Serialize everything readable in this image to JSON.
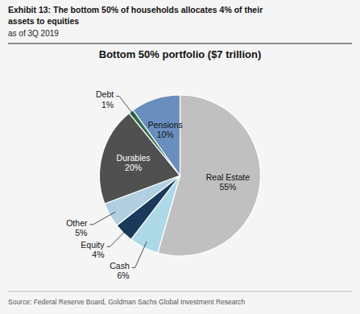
{
  "chart_data": {
    "type": "pie",
    "title": "Bottom 50% portfolio ($7 trillion)",
    "subtitle": "as of 3Q 2019",
    "annotations": [
      "Exhibit 13: The bottom 50% of households allocates 4% of their",
      "assets to equities",
      "Source: Federal Reserve Board, Goldman Sachs Global Investment Research"
    ],
    "categories": [
      "Real Estate",
      "Cash",
      "Equity",
      "Other",
      "Durables",
      "Debt",
      "Pensions"
    ],
    "values": [
      55,
      6,
      4,
      5,
      20,
      1,
      10
    ],
    "value_labels": [
      "55%",
      "6%",
      "4%",
      "5%",
      "20%",
      "1%",
      "10%"
    ],
    "colors": [
      "#c0c0c0",
      "#add8e6",
      "#1a3a5c",
      "#b0cfe0",
      "#505050",
      "#2e6e4e",
      "#6a8fbf"
    ],
    "data_labels": true
  }
}
